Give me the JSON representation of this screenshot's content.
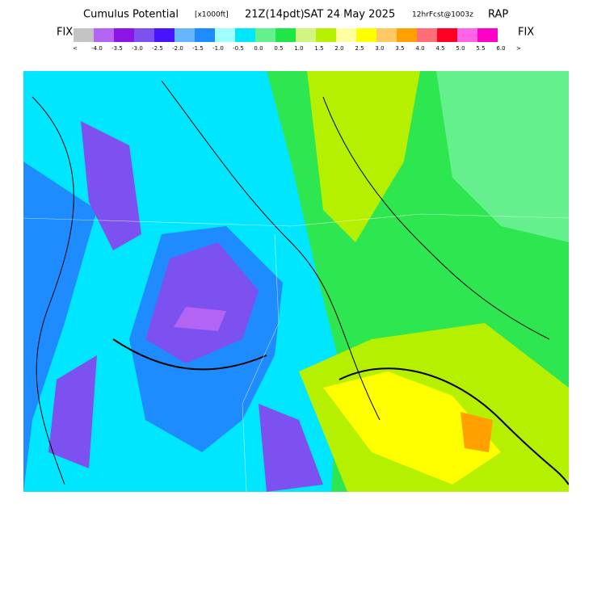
{
  "header": {
    "title": "Cumulus Potential",
    "units": "[x1000ft]",
    "valid": "21Z(14pdt)",
    "date": "SAT 24 May 2025",
    "forecast": "12hrFcst@1003z",
    "model": "RAP"
  },
  "legend": {
    "left_label": "FIX",
    "right_label": "FIX",
    "below": "<",
    "above": ">",
    "items": [
      {
        "color": "#c4c4c4",
        "label": "-4.0"
      },
      {
        "color": "#b464f5",
        "label": "-3.5"
      },
      {
        "color": "#8c14e6",
        "label": "-3.0"
      },
      {
        "color": "#7d50f0",
        "label": "-2.5"
      },
      {
        "color": "#4614ff",
        "label": "-2.0"
      },
      {
        "color": "#64b4ff",
        "label": "-1.5"
      },
      {
        "color": "#1e8cff",
        "label": "-1.0"
      },
      {
        "color": "#a0ffff",
        "label": "-0.5"
      },
      {
        "color": "#00e6ff",
        "label": "0.0"
      },
      {
        "color": "#64f08c",
        "label": "0.5"
      },
      {
        "color": "#1ee646",
        "label": "1.0"
      },
      {
        "color": "#d2f582",
        "label": "1.5"
      },
      {
        "color": "#b4f000",
        "label": "2.0"
      },
      {
        "color": "#ffffa0",
        "label": "2.5"
      },
      {
        "color": "#ffff00",
        "label": "3.0"
      },
      {
        "color": "#ffc864",
        "label": "3.5"
      },
      {
        "color": "#ffa000",
        "label": "4.0"
      },
      {
        "color": "#ff6e78",
        "label": "4.5"
      },
      {
        "color": "#ff0023",
        "label": "5.0"
      },
      {
        "color": "#ff64e6",
        "label": "5.5"
      },
      {
        "color": "#ff00c8",
        "label": "6.0"
      }
    ]
  }
}
